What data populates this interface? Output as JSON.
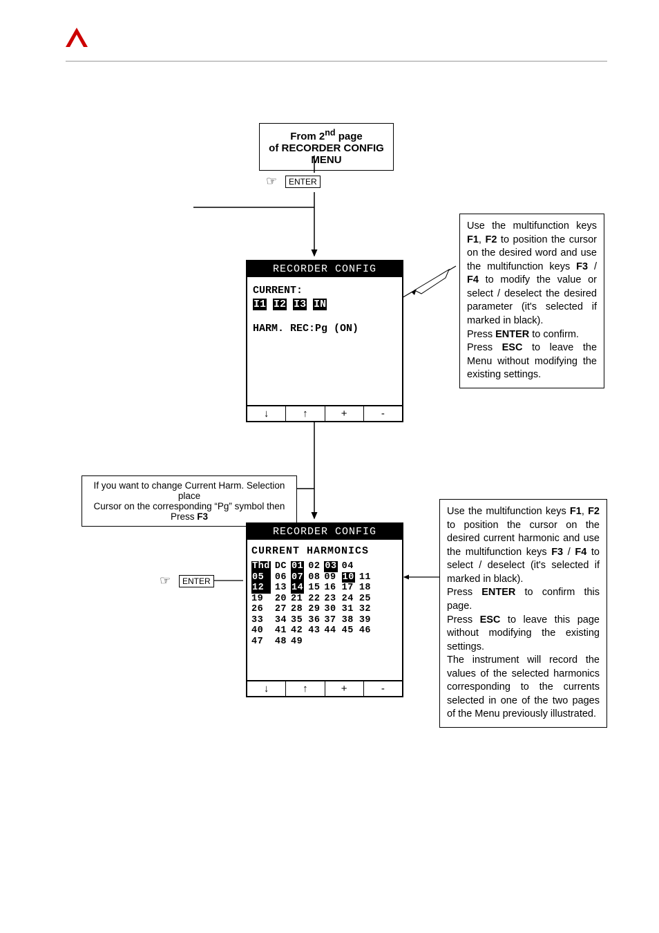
{
  "header": {
    "logo_color": "#cc0000"
  },
  "start_box": {
    "line1_pre": "From 2",
    "line1_sup": "nd",
    "line1_post": " page",
    "line2": "of RECORDER CONFIG MENU"
  },
  "enter_label": "ENTER",
  "screen1": {
    "title": "RECORDER CONFIG",
    "current_label": "CURRENT:",
    "items": [
      "I1",
      "I2",
      "I3",
      "IN"
    ],
    "items_selected": [
      true,
      true,
      true,
      true
    ],
    "line2": "HARM. REC:Pg (ON)",
    "softkeys": [
      "↓",
      "↑",
      "+",
      "-"
    ]
  },
  "callout1": {
    "text_parts": [
      "Use the multifunction keys ",
      {
        "b": "F1"
      },
      ", ",
      {
        "b": "F2"
      },
      " to position the cursor on the desired word and use the multifunction keys ",
      {
        "b": "F3"
      },
      " / ",
      {
        "b": "F4"
      },
      " to modify the value or select / deselect the desired parameter (it's selected if marked in black).",
      {
        "br": true
      },
      "Press ",
      {
        "b": "ENTER"
      },
      " to confirm.",
      {
        "br": true
      },
      "Press ",
      {
        "b": "ESC"
      },
      " to leave the Menu without modifying the existing settings."
    ]
  },
  "mid_box": {
    "line1": "If you want to change Current Harm. Selection place",
    "line2_pre": "Cursor on the corresponding “Pg” symbol then Press ",
    "line2_b": "F3"
  },
  "screen2": {
    "title": "RECORDER CONFIG",
    "subtitle": "CURRENT HARMONICS",
    "cells": [
      [
        "Thd",
        "DC",
        "01",
        "02",
        "03",
        "04",
        ""
      ],
      [
        "05",
        "06",
        "07",
        "08",
        "09",
        "10",
        "11"
      ],
      [
        "12",
        "13",
        "14",
        "15",
        "16",
        "17",
        "18"
      ],
      [
        "19",
        "20",
        "21",
        "22",
        "23",
        "24",
        "25"
      ],
      [
        "26",
        "27",
        "28",
        "29",
        "30",
        "31",
        "32"
      ],
      [
        "33",
        "34",
        "35",
        "36",
        "37",
        "38",
        "39"
      ],
      [
        "40",
        "41",
        "42",
        "43",
        "44",
        "45",
        "46"
      ],
      [
        "47",
        "48",
        "49",
        "",
        "",
        "",
        ""
      ]
    ],
    "selected": [
      [
        true,
        false,
        true,
        false,
        true,
        false,
        false
      ],
      [
        true,
        false,
        true,
        false,
        false,
        true,
        false
      ],
      [
        true,
        false,
        true,
        false,
        false,
        false,
        false
      ],
      [
        false,
        false,
        false,
        false,
        false,
        false,
        false
      ],
      [
        false,
        false,
        false,
        false,
        false,
        false,
        false
      ],
      [
        false,
        false,
        false,
        false,
        false,
        false,
        false
      ],
      [
        false,
        false,
        false,
        false,
        false,
        false,
        false
      ],
      [
        false,
        false,
        false,
        false,
        false,
        false,
        false
      ]
    ],
    "softkeys": [
      "↓",
      "↑",
      "+",
      "-"
    ]
  },
  "callout2": {
    "text_parts": [
      "Use the multifunction keys ",
      {
        "b": "F1"
      },
      ", ",
      {
        "b": "F2"
      },
      " to position the cursor on the desired current harmonic and use the multifunction keys ",
      {
        "b": "F3"
      },
      " / ",
      {
        "b": "F4"
      },
      " to select / deselect (it's selected if marked in black).",
      {
        "br": true
      },
      "Press ",
      {
        "b": "ENTER"
      },
      " to confirm this page.",
      {
        "br": true
      },
      "Press ",
      {
        "b": "ESC"
      },
      " to leave this page without modifying the existing settings.",
      {
        "br": true
      },
      "The instrument will record the values of the selected harmonics corresponding to the currents selected in one of the two pages of the Menu previously illustrated."
    ]
  }
}
